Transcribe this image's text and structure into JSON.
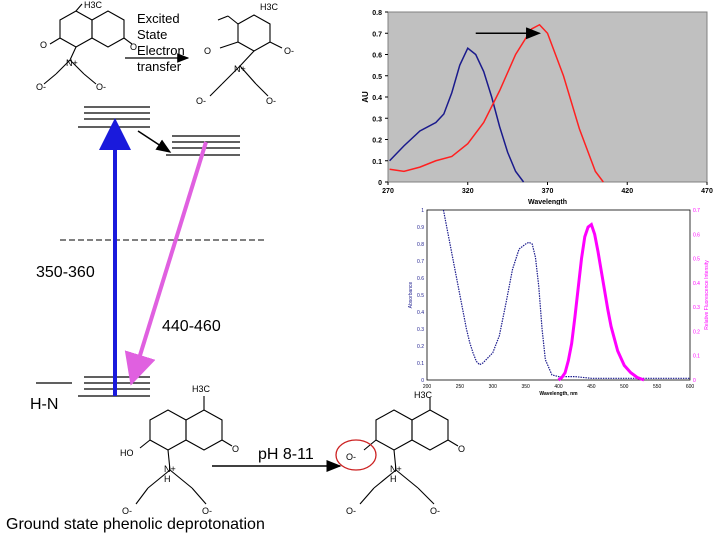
{
  "labels": {
    "excited_line1": "Excited",
    "excited_line2": "State",
    "excited_line3": "Electron",
    "excited_line4": "transfer",
    "abs_range": "350-360",
    "em_range": "440-460",
    "ground_label": "H-N",
    "ph_label": "pH 8-11",
    "caption": "Ground state phenolic deprotonation"
  },
  "chem_labels": {
    "methyl": "H3C",
    "o": "O",
    "o_minus": "O-",
    "ho": "HO",
    "n_plus": "N+",
    "h": "H"
  },
  "colors": {
    "absorption_arrow": "#1a1adc",
    "emission_arrow": "#e060e0",
    "series_blue": "#1a1a8c",
    "series_red": "#ff2020",
    "magenta": "#ff00ff",
    "plot_bg": "#c0c0c0"
  },
  "chart_data": [
    {
      "type": "line",
      "xlabel": "Wavelength",
      "ylabel": "AU",
      "xlim": [
        270,
        470
      ],
      "ylim": [
        0,
        0.8
      ],
      "xticks": [
        "270",
        "320",
        "370",
        "420",
        "470"
      ],
      "yticks": [
        "0",
        "0.1",
        "0.2",
        "0.3",
        "0.4",
        "0.5",
        "0.6",
        "0.7",
        "0.8"
      ],
      "grid": false,
      "series": [
        {
          "color": "#1a1a8c",
          "x": [
            271,
            280,
            290,
            300,
            305,
            310,
            315,
            320,
            325,
            330,
            335,
            340,
            345,
            350,
            355
          ],
          "y": [
            0.1,
            0.17,
            0.24,
            0.28,
            0.32,
            0.42,
            0.55,
            0.63,
            0.6,
            0.52,
            0.4,
            0.26,
            0.14,
            0.05,
            0.0
          ]
        },
        {
          "color": "#ff2020",
          "x": [
            271,
            280,
            290,
            300,
            310,
            320,
            330,
            340,
            350,
            360,
            365,
            370,
            380,
            390,
            400,
            405
          ],
          "y": [
            0.06,
            0.05,
            0.07,
            0.1,
            0.12,
            0.18,
            0.28,
            0.43,
            0.6,
            0.72,
            0.74,
            0.7,
            0.5,
            0.25,
            0.05,
            0.0
          ]
        }
      ]
    },
    {
      "type": "scatter",
      "xlabel": "Wavelength, nm",
      "ylabel": "Absorbance",
      "y2label": "Relative Fluorescence Intensity",
      "xlim": [
        200,
        600
      ],
      "ylim": [
        0,
        1
      ],
      "y2lim": [
        0,
        0.7
      ],
      "xticks": [
        "200",
        "250",
        "300",
        "350",
        "400",
        "450",
        "500",
        "550",
        "600"
      ],
      "yticks": [
        "0",
        "0.1",
        "0.2",
        "0.3",
        "0.4",
        "0.5",
        "0.6",
        "0.7",
        "0.8",
        "0.9",
        "1"
      ],
      "y2ticks": [
        "0",
        "0.1",
        "0.2",
        "0.3",
        "0.4",
        "0.5",
        "0.6",
        "0.7"
      ],
      "series": [
        {
          "axis": "left",
          "color": "#1a1a8c",
          "x": [
            225,
            230,
            235,
            240,
            245,
            250,
            255,
            260,
            265,
            270,
            275,
            280,
            285,
            290,
            300,
            310,
            320,
            330,
            340,
            350,
            355,
            360,
            365,
            370,
            375,
            380,
            390,
            400,
            425,
            450,
            500,
            550,
            600
          ],
          "y": [
            1.0,
            0.9,
            0.8,
            0.7,
            0.6,
            0.5,
            0.4,
            0.3,
            0.22,
            0.16,
            0.11,
            0.09,
            0.1,
            0.12,
            0.16,
            0.26,
            0.45,
            0.65,
            0.77,
            0.8,
            0.81,
            0.8,
            0.72,
            0.55,
            0.3,
            0.12,
            0.03,
            0.02,
            0.02,
            0.01,
            0.01,
            0.01,
            0.01
          ]
        },
        {
          "axis": "right",
          "color": "#ff00ff",
          "x": [
            400,
            405,
            410,
            415,
            420,
            425,
            430,
            435,
            440,
            445,
            450,
            455,
            460,
            465,
            470,
            475,
            480,
            490,
            500,
            510,
            520,
            530
          ],
          "y": [
            0.0,
            0.01,
            0.03,
            0.08,
            0.15,
            0.26,
            0.38,
            0.5,
            0.59,
            0.63,
            0.64,
            0.6,
            0.53,
            0.45,
            0.37,
            0.29,
            0.22,
            0.12,
            0.06,
            0.03,
            0.01,
            0.0
          ]
        }
      ]
    }
  ]
}
